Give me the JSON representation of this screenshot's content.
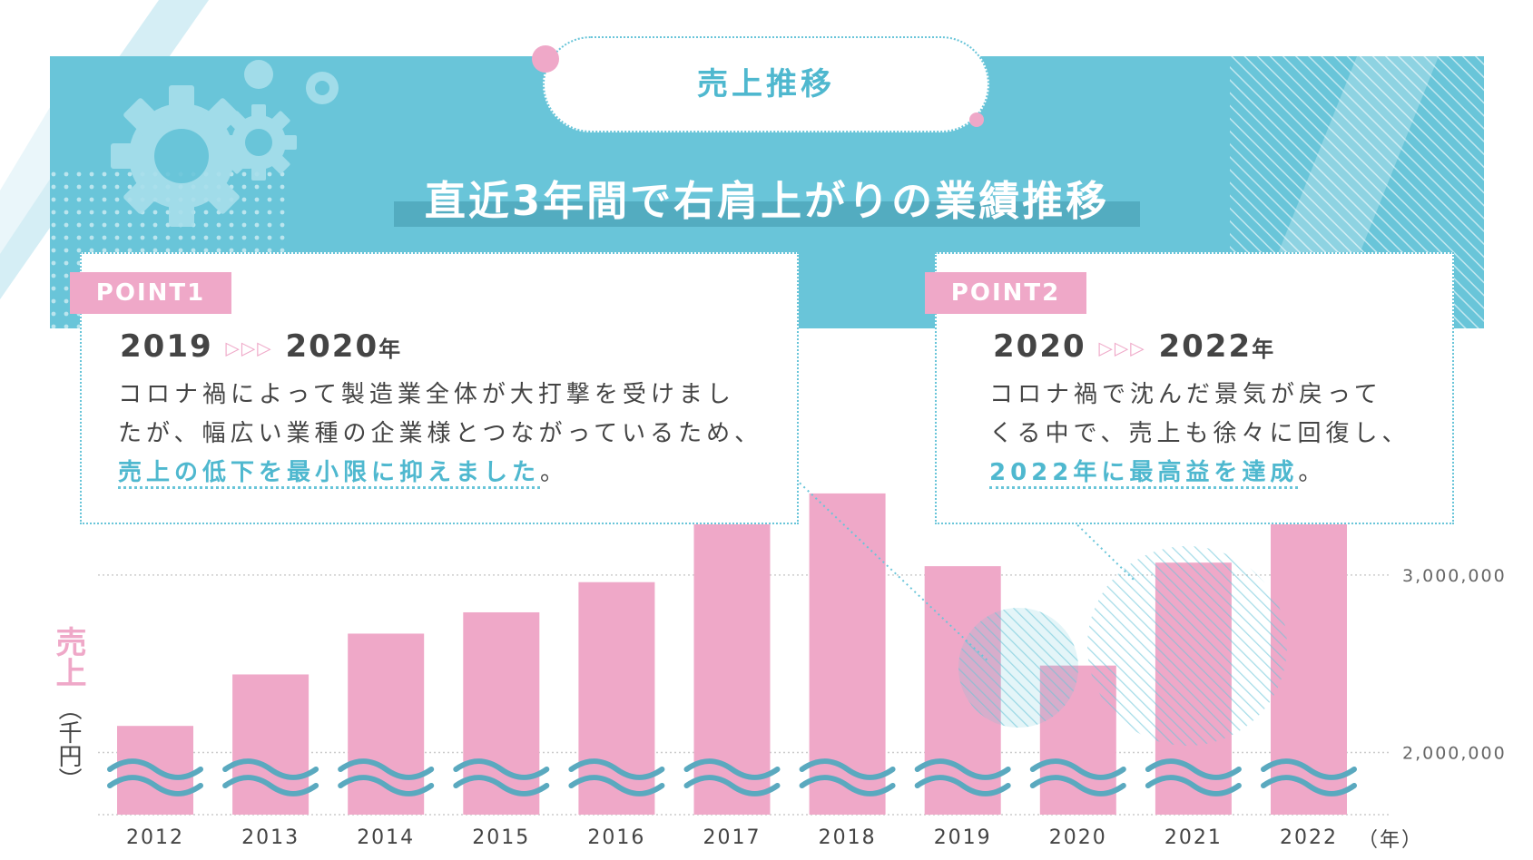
{
  "header": {
    "title": "売上推移",
    "subtitle": "直近3年間で右肩上がりの業績推移"
  },
  "points": [
    {
      "tag": "POINT1",
      "year_from": "2019",
      "arrow": "▷▷▷",
      "year_to": "2020",
      "year_unit": "年",
      "lines": [
        "コロナ禍によって製造業全体が大打撃を受けまし",
        "たが、幅広い業種の企業様とつながっているため、"
      ],
      "highlight": "売上の低下を最小限に抑えました",
      "end": "。"
    },
    {
      "tag": "POINT2",
      "year_from": "2020",
      "arrow": "▷▷▷",
      "year_to": "2022",
      "year_unit": "年",
      "lines": [
        "コロナ禍で沈んだ景気が戻って",
        "くる中で、売上も徐々に回復し、"
      ],
      "highlight": "2022年に最高益を達成",
      "end": "。"
    }
  ],
  "chart_data": {
    "type": "bar",
    "ylabel_main": "売上",
    "ylabel_unit": "（千円）",
    "xlabel": "（年）",
    "categories": [
      "2012",
      "2013",
      "2014",
      "2015",
      "2016",
      "2017",
      "2018",
      "2019",
      "2020",
      "2021",
      "2022"
    ],
    "values": [
      2150000,
      2440000,
      2670000,
      2790000,
      2960000,
      3360000,
      3460000,
      3050000,
      2490000,
      3070000,
      3480000
    ],
    "yticks": [
      {
        "value": 2000000,
        "label": "2,000,000"
      },
      {
        "value": 3000000,
        "label": "3,000,000"
      }
    ],
    "ylim": [
      1650000,
      3650000
    ],
    "axis_break": true,
    "colors": {
      "bar": "#efa8c8",
      "wave": "#5aa9bf",
      "grid": "#cccccc"
    }
  },
  "colors": {
    "accent": "#69c5d9",
    "pink": "#efa8c8"
  }
}
